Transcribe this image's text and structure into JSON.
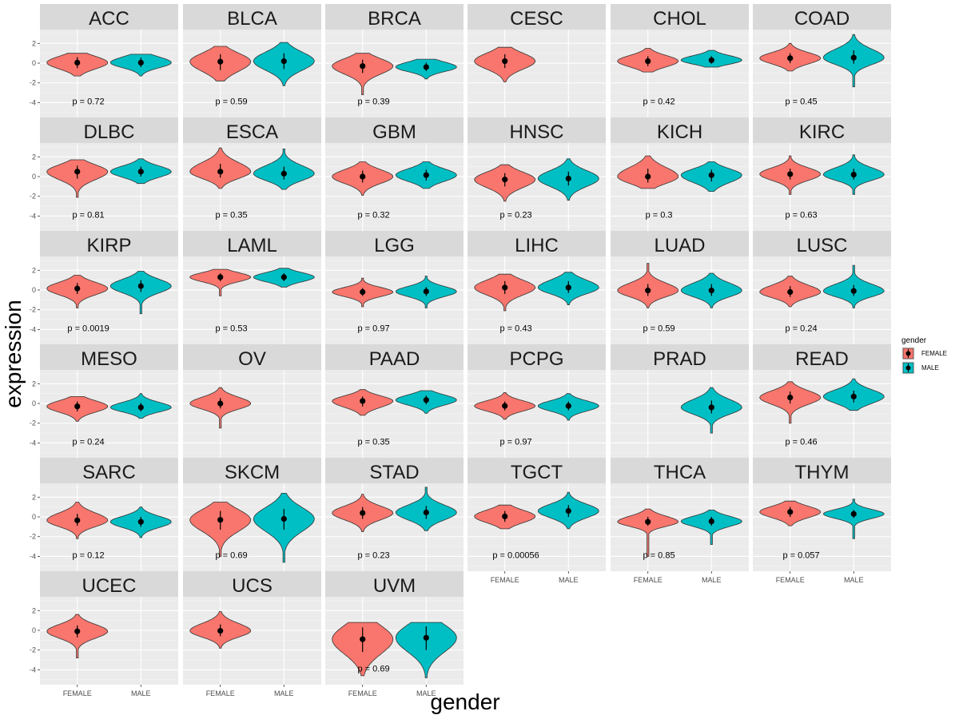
{
  "chart_data": {
    "type": "violin",
    "xlabel": "gender",
    "ylabel": "expression",
    "categories": [
      "FEMALE",
      "MALE"
    ],
    "y_ticks": [
      "2",
      "0",
      "-2",
      "-4"
    ],
    "ylim": [
      -5.5,
      3.4
    ],
    "grid": true,
    "legend": {
      "title": "gender",
      "position": "right",
      "entries": [
        {
          "label": "FEMALE",
          "color": "#F8766D"
        },
        {
          "label": "MALE",
          "color": "#00BFC4"
        }
      ]
    },
    "facets": [
      {
        "name": "ACC",
        "p": "p = 0.72",
        "female": {
          "median": 0.05,
          "min": -1.3,
          "max": 1.0,
          "lo": -0.5,
          "hi": 0.6
        },
        "male": {
          "median": 0.05,
          "min": -1.3,
          "max": 0.9,
          "lo": -0.4,
          "hi": 0.55
        }
      },
      {
        "name": "BLCA",
        "p": "p = 0.59",
        "female": {
          "median": 0.15,
          "min": -1.8,
          "max": 1.7,
          "lo": -0.7,
          "hi": 0.9
        },
        "male": {
          "median": 0.2,
          "min": -2.3,
          "max": 2.1,
          "lo": -0.6,
          "hi": 1.0
        }
      },
      {
        "name": "BRCA",
        "p": "p = 0.39",
        "female": {
          "median": -0.3,
          "min": -3.2,
          "max": 1.0,
          "lo": -1.0,
          "hi": 0.35
        },
        "male": {
          "median": -0.4,
          "min": -1.6,
          "max": 0.4,
          "lo": -0.8,
          "hi": 0.05
        }
      },
      {
        "name": "CESC",
        "p": "",
        "female": {
          "median": 0.2,
          "min": -1.9,
          "max": 1.6,
          "lo": -0.5,
          "hi": 0.9
        },
        "male": null
      },
      {
        "name": "CHOL",
        "p": "p = 0.42",
        "female": {
          "median": 0.2,
          "min": -0.9,
          "max": 1.5,
          "lo": -0.3,
          "hi": 0.7
        },
        "male": {
          "median": 0.3,
          "min": -0.4,
          "max": 1.3,
          "lo": -0.05,
          "hi": 0.7
        }
      },
      {
        "name": "COAD",
        "p": "p = 0.45",
        "female": {
          "median": 0.5,
          "min": -0.8,
          "max": 2.0,
          "lo": 0.0,
          "hi": 1.0
        },
        "male": {
          "median": 0.55,
          "min": -2.4,
          "max": 2.9,
          "lo": -0.05,
          "hi": 1.3
        }
      },
      {
        "name": "DLBC",
        "p": "p = 0.81",
        "female": {
          "median": 0.5,
          "min": -2.1,
          "max": 1.7,
          "lo": -0.2,
          "hi": 1.1
        },
        "male": {
          "median": 0.5,
          "min": -0.7,
          "max": 1.8,
          "lo": 0.0,
          "hi": 1.0
        }
      },
      {
        "name": "ESCA",
        "p": "p = 0.35",
        "female": {
          "median": 0.5,
          "min": -1.2,
          "max": 2.9,
          "lo": -0.1,
          "hi": 1.3
        },
        "male": {
          "median": 0.3,
          "min": -1.3,
          "max": 2.8,
          "lo": -0.3,
          "hi": 1.0
        }
      },
      {
        "name": "GBM",
        "p": "p = 0.32",
        "female": {
          "median": 0.0,
          "min": -1.9,
          "max": 1.5,
          "lo": -0.6,
          "hi": 0.6
        },
        "male": {
          "median": 0.15,
          "min": -1.2,
          "max": 1.5,
          "lo": -0.4,
          "hi": 0.7
        }
      },
      {
        "name": "HNSC",
        "p": "p = 0.23",
        "female": {
          "median": -0.3,
          "min": -2.5,
          "max": 1.2,
          "lo": -1.0,
          "hi": 0.35
        },
        "male": {
          "median": -0.2,
          "min": -2.4,
          "max": 1.8,
          "lo": -0.9,
          "hi": 0.5
        }
      },
      {
        "name": "KICH",
        "p": "p = 0.3",
        "female": {
          "median": 0.0,
          "min": -1.2,
          "max": 2.1,
          "lo": -0.6,
          "hi": 0.8
        },
        "male": {
          "median": 0.15,
          "min": -1.5,
          "max": 1.5,
          "lo": -0.5,
          "hi": 0.7
        }
      },
      {
        "name": "KIRC",
        "p": "p = 0.63",
        "female": {
          "median": 0.25,
          "min": -1.8,
          "max": 2.1,
          "lo": -0.3,
          "hi": 0.8
        },
        "male": {
          "median": 0.2,
          "min": -1.8,
          "max": 2.2,
          "lo": -0.3,
          "hi": 0.8
        }
      },
      {
        "name": "KIRP",
        "p": "p = 0.0019",
        "female": {
          "median": 0.15,
          "min": -1.8,
          "max": 1.5,
          "lo": -0.4,
          "hi": 0.7
        },
        "male": {
          "median": 0.4,
          "min": -2.4,
          "max": 1.9,
          "lo": -0.2,
          "hi": 1.0
        }
      },
      {
        "name": "LAML",
        "p": "p = 0.53",
        "female": {
          "median": 1.3,
          "min": -0.6,
          "max": 2.1,
          "lo": 0.9,
          "hi": 1.7
        },
        "male": {
          "median": 1.3,
          "min": 0.3,
          "max": 2.2,
          "lo": 0.9,
          "hi": 1.7
        }
      },
      {
        "name": "LGG",
        "p": "p = 0.97",
        "female": {
          "median": -0.2,
          "min": -1.7,
          "max": 1.2,
          "lo": -0.6,
          "hi": 0.2
        },
        "male": {
          "median": -0.15,
          "min": -1.8,
          "max": 1.4,
          "lo": -0.6,
          "hi": 0.3
        }
      },
      {
        "name": "LIHC",
        "p": "p = 0.43",
        "female": {
          "median": 0.25,
          "min": -2.1,
          "max": 1.6,
          "lo": -0.4,
          "hi": 0.9
        },
        "male": {
          "median": 0.25,
          "min": -1.5,
          "max": 1.8,
          "lo": -0.3,
          "hi": 0.9
        }
      },
      {
        "name": "LUAD",
        "p": "p = 0.59",
        "female": {
          "median": -0.05,
          "min": -1.8,
          "max": 2.7,
          "lo": -0.6,
          "hi": 0.6
        },
        "male": {
          "median": -0.05,
          "min": -1.8,
          "max": 1.7,
          "lo": -0.6,
          "hi": 0.6
        }
      },
      {
        "name": "LUSC",
        "p": "p = 0.24",
        "female": {
          "median": -0.2,
          "min": -1.7,
          "max": 1.4,
          "lo": -0.7,
          "hi": 0.4
        },
        "male": {
          "median": -0.1,
          "min": -1.8,
          "max": 2.5,
          "lo": -0.6,
          "hi": 0.5
        }
      },
      {
        "name": "MESO",
        "p": "p = 0.24",
        "female": {
          "median": -0.3,
          "min": -1.8,
          "max": 0.7,
          "lo": -0.8,
          "hi": 0.2
        },
        "male": {
          "median": -0.4,
          "min": -1.5,
          "max": 1.0,
          "lo": -0.8,
          "hi": 0.05
        }
      },
      {
        "name": "OV",
        "p": "",
        "female": {
          "median": 0.0,
          "min": -2.5,
          "max": 1.6,
          "lo": -0.5,
          "hi": 0.55
        },
        "male": null
      },
      {
        "name": "PAAD",
        "p": "p = 0.35",
        "female": {
          "median": 0.25,
          "min": -1.2,
          "max": 1.4,
          "lo": -0.3,
          "hi": 0.7
        },
        "male": {
          "median": 0.35,
          "min": -1.0,
          "max": 1.3,
          "lo": -0.1,
          "hi": 0.8
        }
      },
      {
        "name": "PCPG",
        "p": "p = 0.97",
        "female": {
          "median": -0.25,
          "min": -1.6,
          "max": 1.1,
          "lo": -0.7,
          "hi": 0.2
        },
        "male": {
          "median": -0.25,
          "min": -1.7,
          "max": 1.0,
          "lo": -0.7,
          "hi": 0.2
        }
      },
      {
        "name": "PRAD",
        "p": "",
        "female": null,
        "male": {
          "median": -0.4,
          "min": -3.0,
          "max": 1.6,
          "lo": -1.0,
          "hi": 0.3
        }
      },
      {
        "name": "READ",
        "p": "p = 0.46",
        "female": {
          "median": 0.6,
          "min": -2.0,
          "max": 2.2,
          "lo": 0.0,
          "hi": 1.2
        },
        "male": {
          "median": 0.7,
          "min": -0.7,
          "max": 2.5,
          "lo": 0.1,
          "hi": 1.3
        }
      },
      {
        "name": "SARC",
        "p": "p = 0.12",
        "female": {
          "median": -0.35,
          "min": -2.2,
          "max": 1.5,
          "lo": -0.9,
          "hi": 0.3
        },
        "male": {
          "median": -0.5,
          "min": -2.1,
          "max": 1.0,
          "lo": -1.0,
          "hi": 0.0
        }
      },
      {
        "name": "SKCM",
        "p": "p = 0.69",
        "female": {
          "median": -0.3,
          "min": -4.0,
          "max": 1.5,
          "lo": -1.3,
          "hi": 0.6
        },
        "male": {
          "median": -0.2,
          "min": -4.6,
          "max": 2.4,
          "lo": -1.3,
          "hi": 0.8
        }
      },
      {
        "name": "STAD",
        "p": "p = 0.23",
        "female": {
          "median": 0.4,
          "min": -1.5,
          "max": 2.3,
          "lo": -0.2,
          "hi": 1.0
        },
        "male": {
          "median": 0.45,
          "min": -1.4,
          "max": 3.0,
          "lo": -0.2,
          "hi": 1.1
        }
      },
      {
        "name": "TGCT",
        "p": "p = 0.00056",
        "female": {
          "median": 0.05,
          "min": -1.2,
          "max": 1.2,
          "lo": -0.5,
          "hi": 0.6
        },
        "male": {
          "median": 0.6,
          "min": -1.2,
          "max": 2.5,
          "lo": 0.0,
          "hi": 1.2
        }
      },
      {
        "name": "THCA",
        "p": "p = 0.85",
        "female": {
          "median": -0.5,
          "min": -4.0,
          "max": 0.8,
          "lo": -0.9,
          "hi": 0.0
        },
        "male": {
          "median": -0.45,
          "min": -2.8,
          "max": 0.7,
          "lo": -0.9,
          "hi": 0.0
        }
      },
      {
        "name": "THYM",
        "p": "p = 0.057",
        "female": {
          "median": 0.5,
          "min": -0.9,
          "max": 1.6,
          "lo": 0.0,
          "hi": 1.0
        },
        "male": {
          "median": 0.3,
          "min": -2.2,
          "max": 1.8,
          "lo": -0.1,
          "hi": 0.7
        }
      },
      {
        "name": "UCEC",
        "p": "",
        "female": {
          "median": -0.1,
          "min": -2.8,
          "max": 1.6,
          "lo": -0.7,
          "hi": 0.5
        },
        "male": null
      },
      {
        "name": "UCS",
        "p": "",
        "female": {
          "median": -0.05,
          "min": -1.8,
          "max": 1.9,
          "lo": -0.6,
          "hi": 0.6
        },
        "male": null
      },
      {
        "name": "UVM",
        "p": "p = 0.69",
        "female": {
          "median": -0.9,
          "min": -4.6,
          "max": 0.8,
          "lo": -2.2,
          "hi": 0.3
        },
        "male": {
          "median": -0.75,
          "min": -4.8,
          "max": 0.8,
          "lo": -2.0,
          "hi": 0.4
        }
      }
    ]
  }
}
